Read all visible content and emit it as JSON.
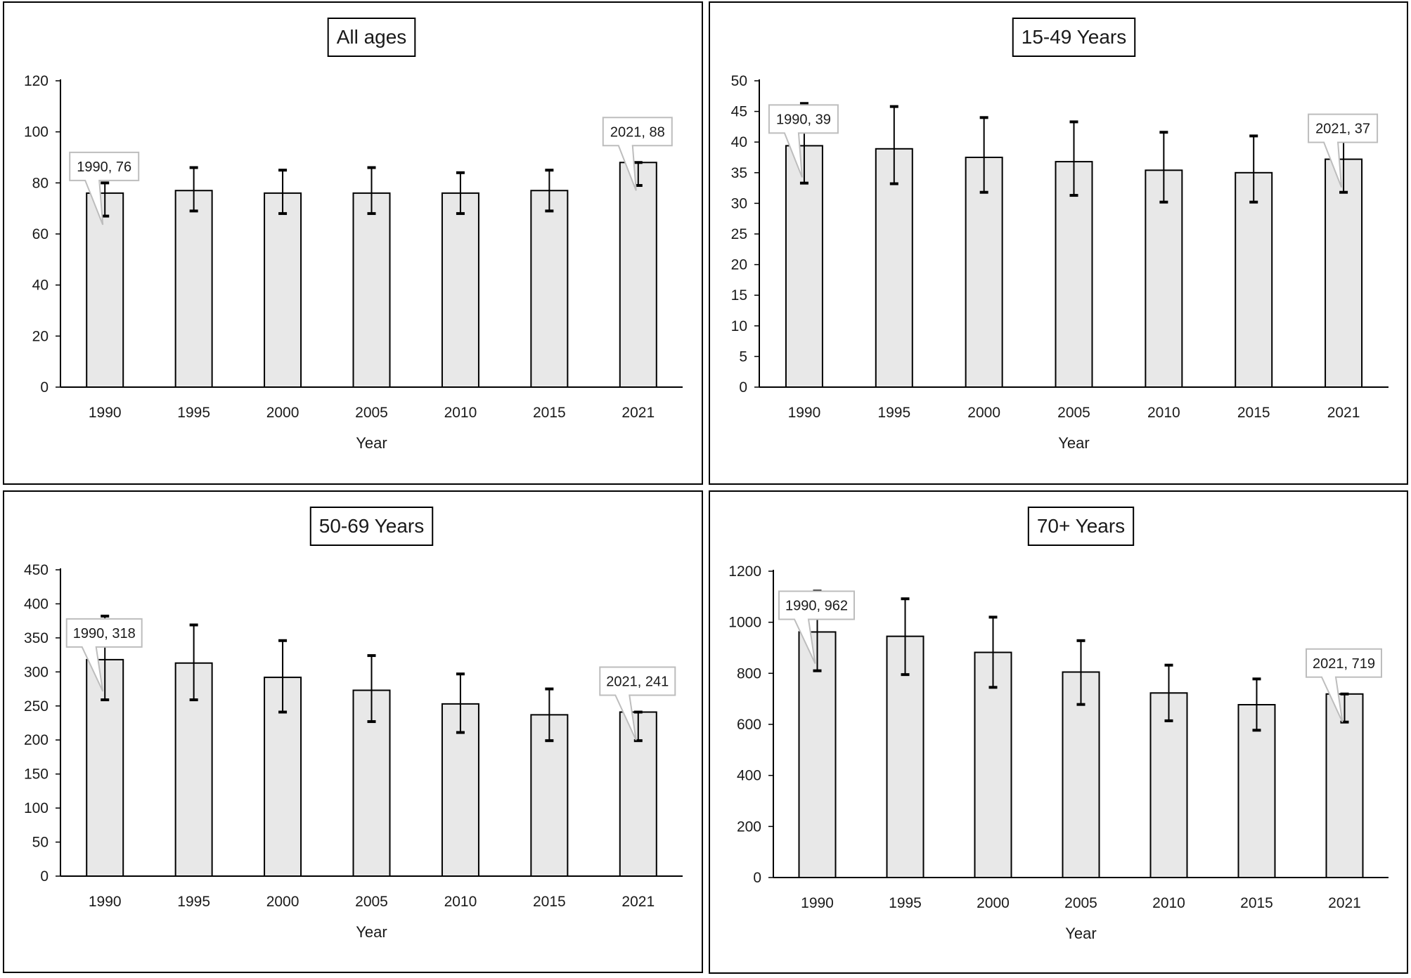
{
  "chart_data": [
    {
      "type": "bar",
      "title": "All ages",
      "xlabel": "Year",
      "ylabel": "",
      "categories": [
        "1990",
        "1995",
        "2000",
        "2005",
        "2010",
        "2015",
        "2021"
      ],
      "values": [
        76,
        77,
        76,
        76,
        76,
        77,
        88
      ],
      "error_low": [
        67,
        69,
        68,
        68,
        68,
        69,
        79
      ],
      "error_high": [
        80,
        86,
        85,
        86,
        84,
        85,
        88
      ],
      "ylim": [
        0,
        120
      ],
      "yticks": [
        0,
        20,
        40,
        60,
        80,
        100,
        120
      ],
      "grid": false,
      "callouts": [
        {
          "category": "1990",
          "text": "1990, 76"
        },
        {
          "category": "2021",
          "text": "2021, 88"
        }
      ]
    },
    {
      "type": "bar",
      "title": "15-49 Years",
      "xlabel": "Year",
      "ylabel": "",
      "categories": [
        "1990",
        "1995",
        "2000",
        "2005",
        "2010",
        "2015",
        "2021"
      ],
      "values": [
        39.4,
        38.9,
        37.5,
        36.8,
        35.4,
        35.0,
        37.2
      ],
      "error_low": [
        33.3,
        33.2,
        31.8,
        31.3,
        30.2,
        30.2,
        31.8
      ],
      "error_high": [
        46.3,
        45.8,
        44.0,
        43.3,
        41.6,
        41.0,
        43.6
      ],
      "ylim": [
        0,
        50
      ],
      "yticks": [
        0,
        5,
        10,
        15,
        20,
        25,
        30,
        35,
        40,
        45,
        50
      ],
      "grid": false,
      "callouts": [
        {
          "category": "1990",
          "text": "1990, 39"
        },
        {
          "category": "2021",
          "text": "2021, 37"
        }
      ]
    },
    {
      "type": "bar",
      "title": "50-69 Years",
      "xlabel": "Year",
      "ylabel": "",
      "categories": [
        "1990",
        "1995",
        "2000",
        "2005",
        "2010",
        "2015",
        "2021"
      ],
      "values": [
        318,
        313,
        292,
        273,
        253,
        237,
        241
      ],
      "error_low": [
        259,
        259,
        241,
        227,
        211,
        199,
        199
      ],
      "error_high": [
        382,
        369,
        346,
        324,
        297,
        275,
        241
      ],
      "ylim": [
        0,
        450
      ],
      "yticks": [
        0,
        50,
        100,
        150,
        200,
        250,
        300,
        350,
        400,
        450
      ],
      "grid": false,
      "callouts": [
        {
          "category": "1990",
          "text": "1990, 318"
        },
        {
          "category": "2021",
          "text": "2021, 241"
        }
      ]
    },
    {
      "type": "bar",
      "title": "70+ Years",
      "xlabel": "Year",
      "ylabel": "",
      "categories": [
        "1990",
        "1995",
        "2000",
        "2005",
        "2010",
        "2015",
        "2021"
      ],
      "values": [
        962,
        945,
        882,
        805,
        723,
        677,
        719
      ],
      "error_low": [
        810,
        795,
        745,
        678,
        614,
        577,
        609
      ],
      "error_high": [
        1122,
        1092,
        1020,
        928,
        832,
        778,
        719
      ],
      "ylim": [
        0,
        1200
      ],
      "yticks": [
        0,
        200,
        400,
        600,
        800,
        1000,
        1200
      ],
      "grid": false,
      "callouts": [
        {
          "category": "1990",
          "text": "1990, 962"
        },
        {
          "category": "2021",
          "text": "2021, 719"
        }
      ]
    }
  ]
}
